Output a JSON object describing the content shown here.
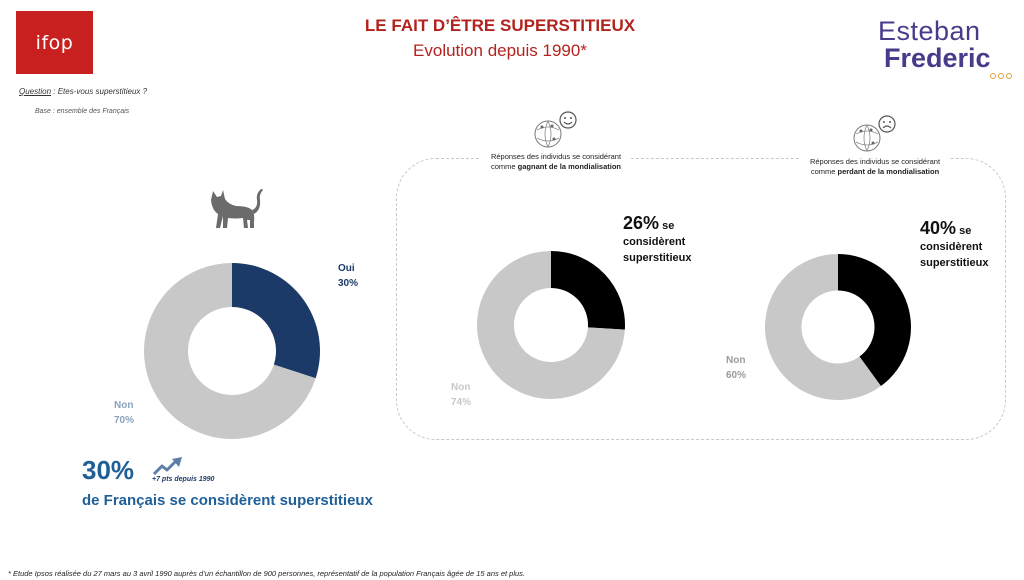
{
  "header": {
    "logo_text": "ifop",
    "title": "LE FAIT D’ÊTRE SUPERSTITIEUX",
    "subtitle": "Evolution depuis 1990*",
    "brand_first": "Esteban",
    "brand_last": "Frederic"
  },
  "question": {
    "label": "Question",
    "text": " : Etes-vous superstitieux ?"
  },
  "base": "Base : ensemble des Français",
  "icons": {
    "cat": "cat-icon",
    "winner": "globe-smiley-icon",
    "loser": "globe-sad-icon",
    "trend": "trend-up-arrow-icon"
  },
  "segments": {
    "winner_label_pre": "Réponses des individus se considérant comme ",
    "winner_label_bold": "gagnant de la mondialisation",
    "loser_label_pre": "Réponses des individus se considérant comme ",
    "loser_label_bold": "perdant de la mondialisation"
  },
  "stats": {
    "winner_pct": "26%",
    "winner_text_1": " se",
    "winner_text_2": "considèrent",
    "winner_text_3": "superstitieux",
    "loser_pct": "40%",
    "loser_text_1": " se",
    "loser_text_2": "considèrent",
    "loser_text_3": "superstitieux"
  },
  "kpi": {
    "value": "30%",
    "trend": "+7 pts depuis 1990",
    "text": "de Français se considèrent superstitieux"
  },
  "footnote": "* Etude Ipsos réalisée du 27 mars au 3 avril 1990 auprès d’un échantillon de 900 personnes, représentatif de la population Français âgée de 15 ans et plus.",
  "chart_data": [
    {
      "type": "pie",
      "categories": [
        "Oui",
        "Non"
      ],
      "values": [
        30,
        70
      ],
      "labels": [
        "Oui\n30%",
        "Non\n70%"
      ],
      "colors": [
        "#1b3a68",
        "#c8c8c8"
      ],
      "label_colors": [
        "#1b3a68",
        "#8aa2bd"
      ]
    },
    {
      "type": "pie",
      "categories": [
        "Oui",
        "Non"
      ],
      "values": [
        26,
        74
      ],
      "labels": [
        "",
        "Non\n74%"
      ],
      "colors": [
        "#000000",
        "#c8c8c8"
      ],
      "label_colors": [
        "#000000",
        "#c8c8c8"
      ]
    },
    {
      "type": "pie",
      "categories": [
        "Oui",
        "Non"
      ],
      "values": [
        40,
        60
      ],
      "labels": [
        "",
        "Non\n60%"
      ],
      "colors": [
        "#000000",
        "#c8c8c8"
      ],
      "label_colors": [
        "#000000",
        "#9a9a9a"
      ]
    }
  ]
}
